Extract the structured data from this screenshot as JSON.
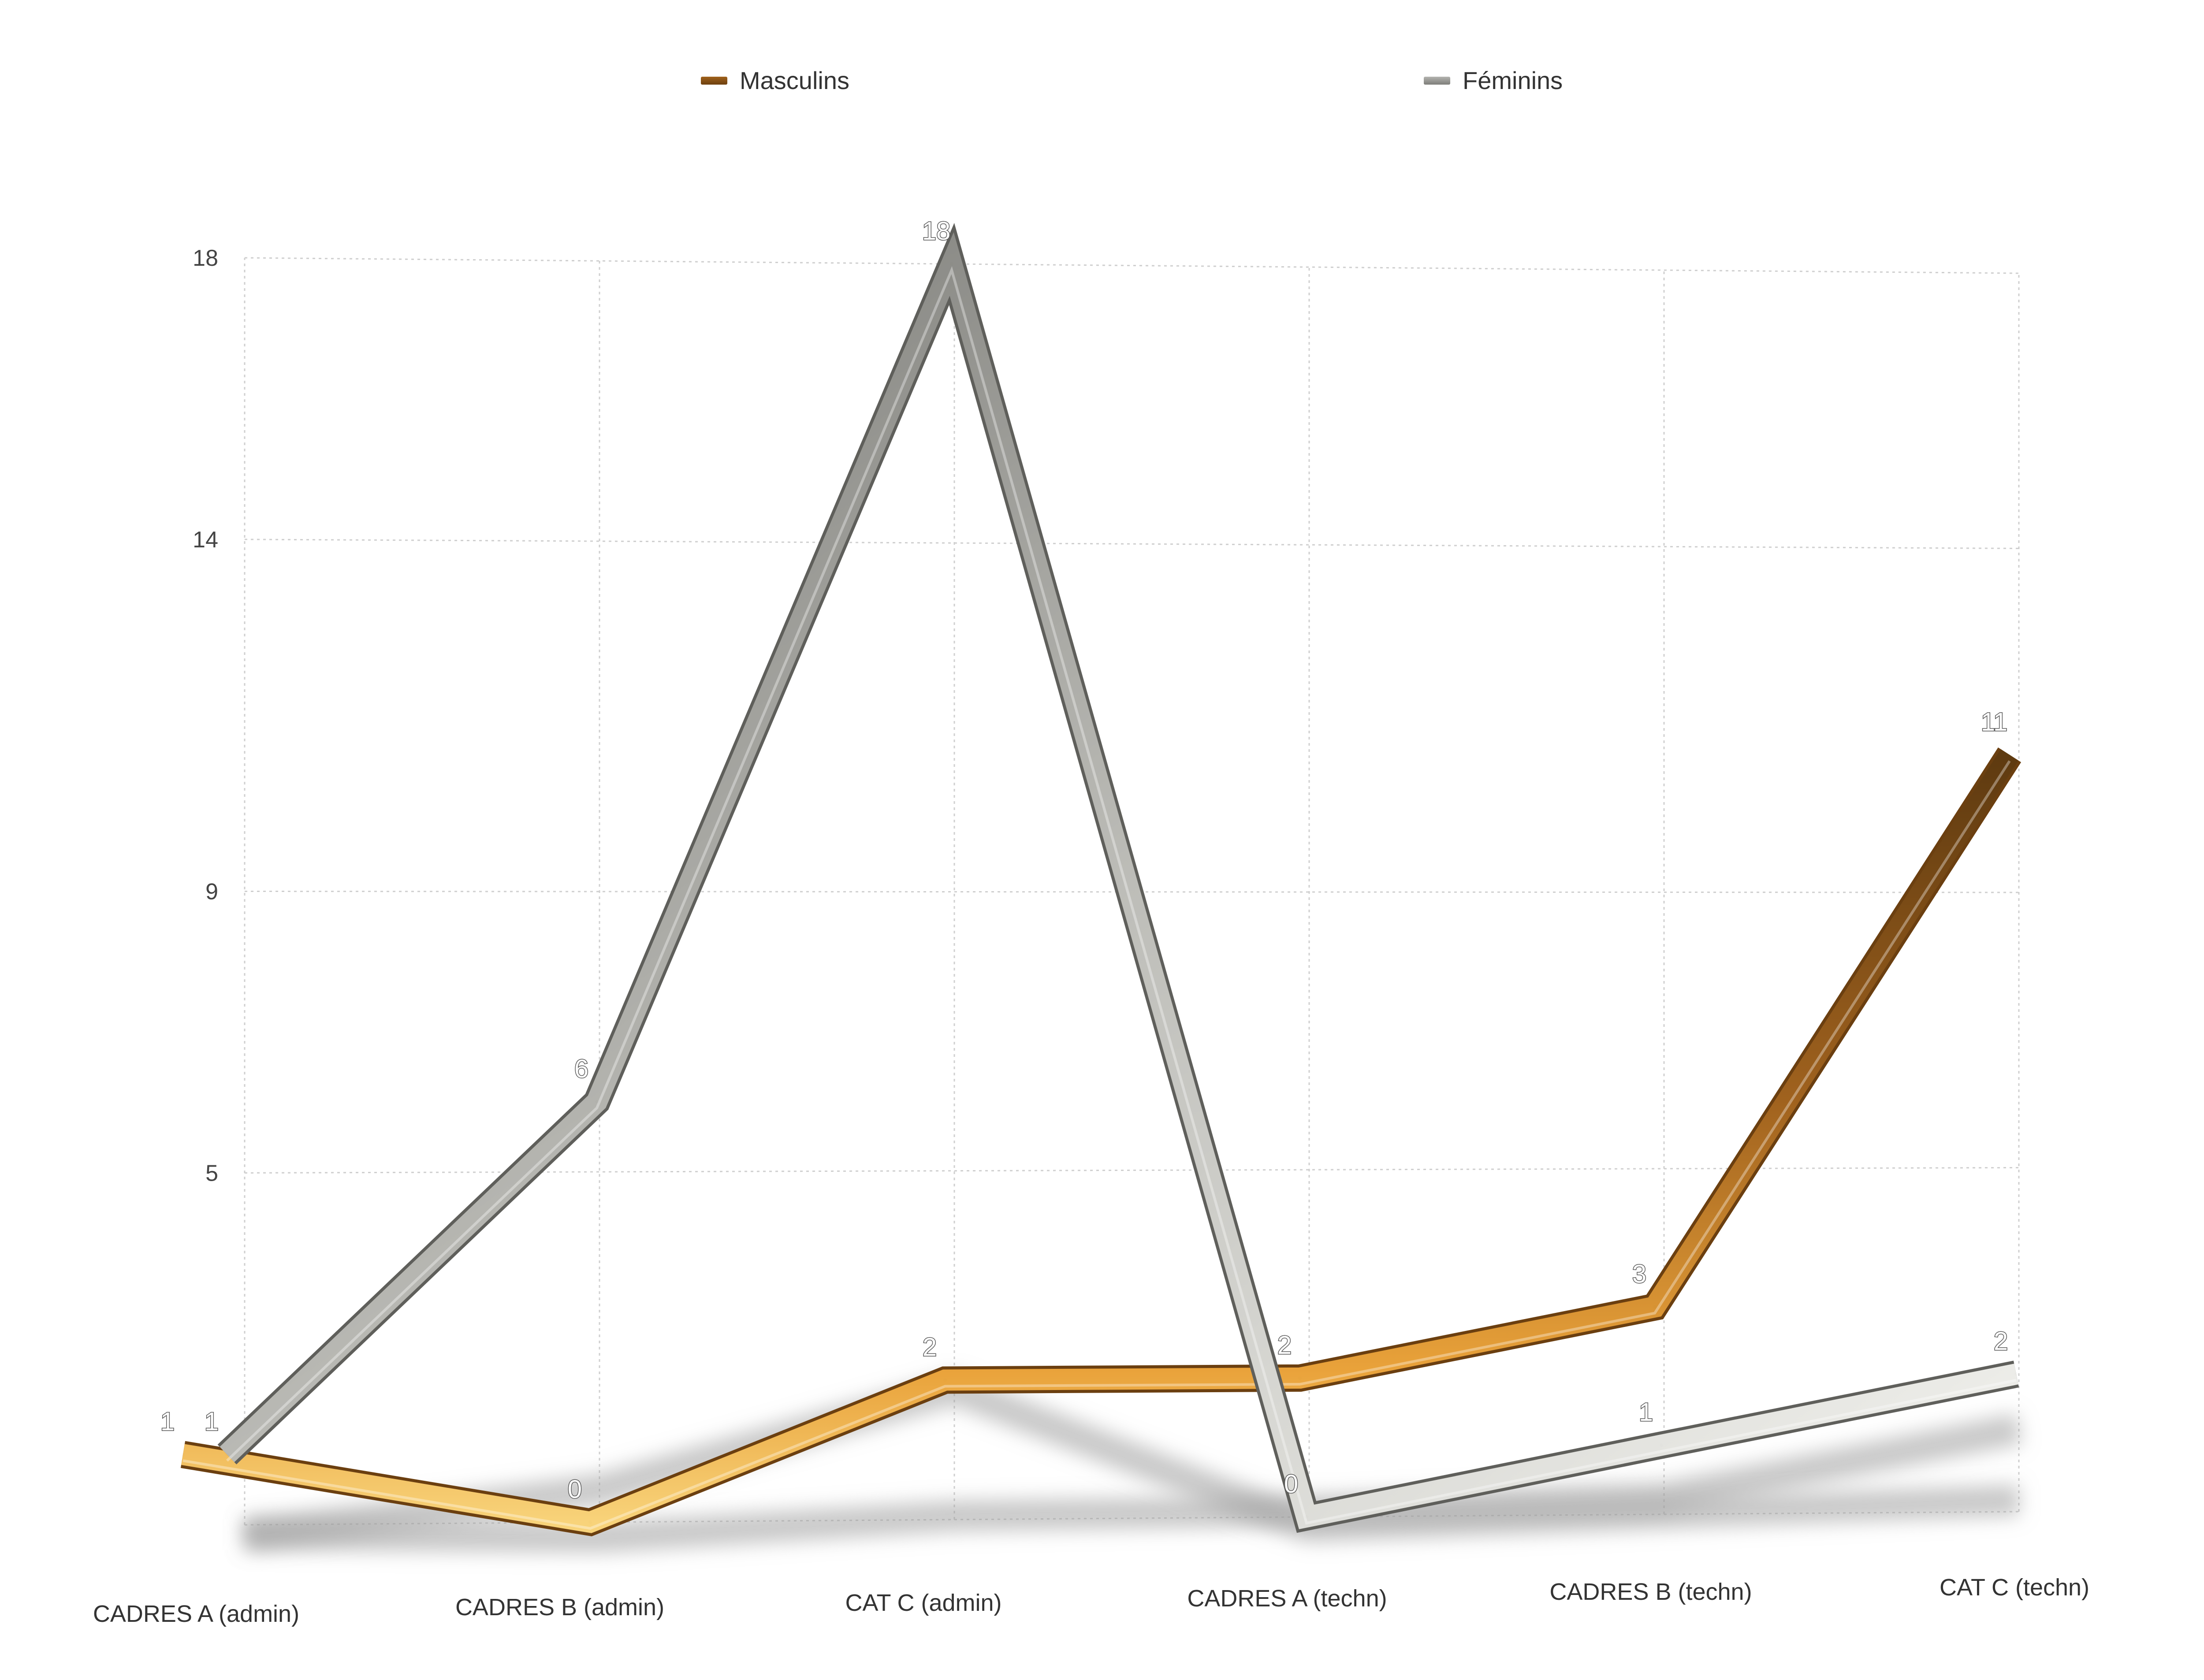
{
  "chart_data": {
    "type": "line",
    "title": "",
    "xlabel": "",
    "ylabel": "",
    "categories": [
      "CADRES A (admin)",
      "CADRES B (admin)",
      "CAT C (admin)",
      "CADRES A (techn)",
      "CADRES B (techn)",
      "CAT C (techn)"
    ],
    "y_ticks": [
      "5",
      "9",
      "14",
      "18"
    ],
    "y_tick_values": [
      5,
      9,
      14,
      18
    ],
    "ylim": [
      0,
      18
    ],
    "grid": true,
    "legend_position": "top",
    "series": [
      {
        "name": "Masculins",
        "values": [
          1,
          0,
          2,
          2,
          3,
          11
        ],
        "labels": [
          "1",
          "0",
          "2",
          "2",
          "3",
          "11"
        ],
        "color": "#c8842c"
      },
      {
        "name": "Féminins",
        "values": [
          1,
          6,
          18,
          0,
          1,
          2
        ],
        "labels": [
          "1",
          "6",
          "18",
          "0",
          "1",
          "2"
        ],
        "color": "#9a9a96"
      }
    ]
  }
}
